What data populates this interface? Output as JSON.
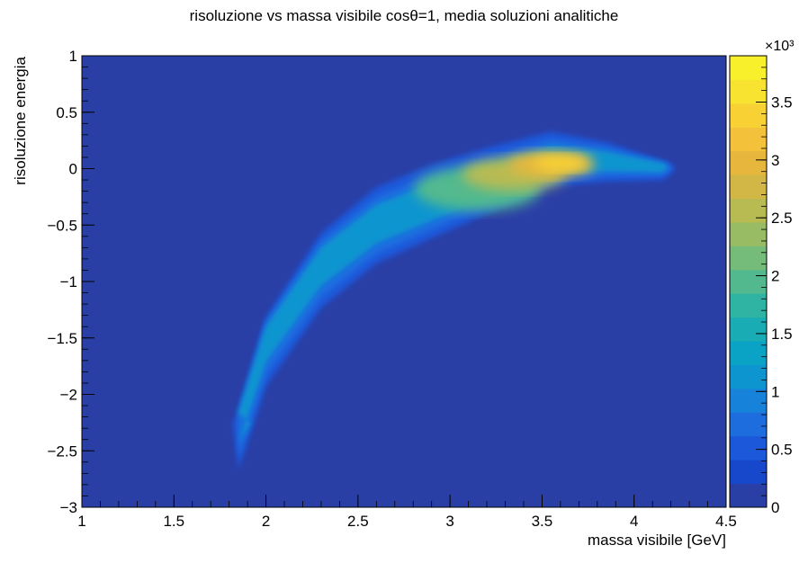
{
  "chart_data": {
    "type": "heatmap",
    "title": "risoluzione vs massa visibile cosθ=1,  media soluzioni analitiche",
    "xlabel": "massa visibile [GeV]",
    "ylabel": "risoluzione energia",
    "xlim": [
      1,
      4.5
    ],
    "ylim": [
      -3,
      1
    ],
    "x_ticks": [
      "1",
      "1.5",
      "2",
      "2.5",
      "3",
      "3.5",
      "4",
      "4.5"
    ],
    "y_ticks": [
      "1",
      "0.5",
      "0",
      "−0.5",
      "−1",
      "−1.5",
      "−2",
      "−2.5",
      "−3"
    ],
    "colorbar": {
      "range": [
        0,
        3900
      ],
      "multiplier_label": "×10³",
      "ticks": [
        "0",
        "0.5",
        "1",
        "1.5",
        "2",
        "2.5",
        "3",
        "3.5"
      ],
      "tick_values": [
        0,
        500,
        1000,
        1500,
        2000,
        2500,
        3000,
        3500
      ],
      "palette": [
        "#2a3fa6",
        "#1748cc",
        "#1b58da",
        "#1d6ddf",
        "#1782d9",
        "#0c95cf",
        "#0ba3c5",
        "#1aacb5",
        "#2fb3a3",
        "#52b98e",
        "#75bb79",
        "#98bc64",
        "#b8bb52",
        "#d3b746",
        "#e7b73d",
        "#f3c23a",
        "#f8d235",
        "#f8e430",
        "#f8f02b"
      ]
    },
    "ridge": [
      {
        "x": 1.85,
        "y": -2.2
      },
      {
        "x": 2.0,
        "y": -1.5
      },
      {
        "x": 2.3,
        "y": -0.85
      },
      {
        "x": 2.6,
        "y": -0.5
      },
      {
        "x": 2.9,
        "y": -0.32
      },
      {
        "x": 3.2,
        "y": -0.15
      },
      {
        "x": 3.55,
        "y": 0.05
      },
      {
        "x": 3.85,
        "y": 0.05
      },
      {
        "x": 4.15,
        "y": 0.02
      }
    ],
    "peak": {
      "x": 3.6,
      "y": 0.05,
      "value": 3850
    }
  }
}
